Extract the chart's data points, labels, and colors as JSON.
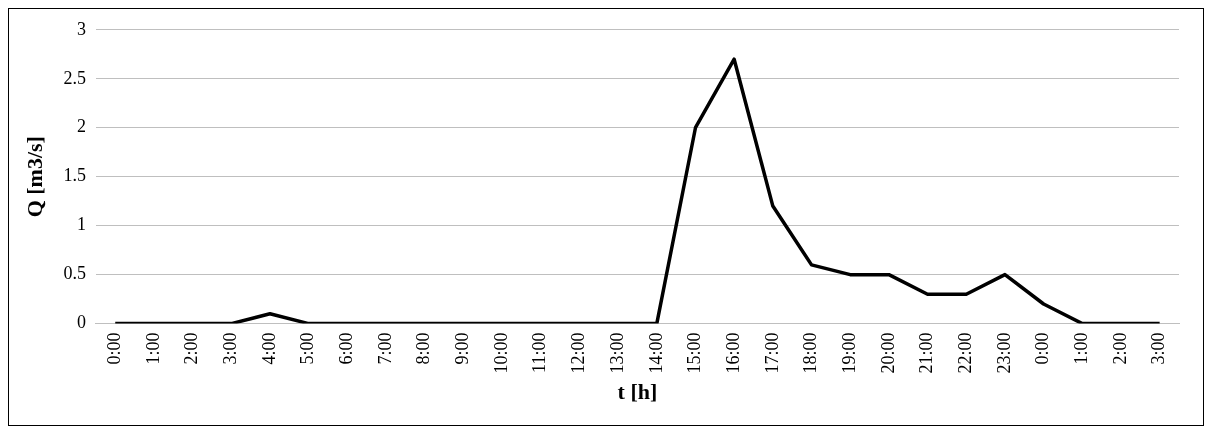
{
  "chart_data": {
    "type": "line",
    "xlabel": "t [h]",
    "ylabel": "Q [m3/s]",
    "categories": [
      "0:00",
      "1:00",
      "2:00",
      "3:00",
      "4:00",
      "5:00",
      "6:00",
      "7:00",
      "8:00",
      "9:00",
      "10:00",
      "11:00",
      "12:00",
      "13:00",
      "14:00",
      "15:00",
      "16:00",
      "17:00",
      "18:00",
      "19:00",
      "20:00",
      "21:00",
      "22:00",
      "23:00",
      "0:00",
      "1:00",
      "2:00",
      "3:00"
    ],
    "series": [
      {
        "color": "#000000",
        "values": [
          0,
          0,
          0,
          0,
          0.1,
          0,
          0,
          0,
          0,
          0,
          0,
          0,
          0,
          0,
          0,
          2,
          2.7,
          1.2,
          0.6,
          0.5,
          0.5,
          0.3,
          0.3,
          0.5,
          0.2,
          0,
          0,
          0
        ]
      }
    ],
    "ylim": [
      0,
      3
    ],
    "yticks": [
      0,
      0.5,
      1,
      1.5,
      2,
      2.5,
      3
    ],
    "grid": "y",
    "legend": false,
    "marker": "none",
    "line_style": "solid"
  }
}
